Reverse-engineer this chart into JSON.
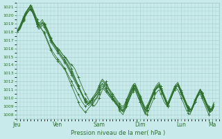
{
  "title": "",
  "xlabel": "Pression niveau de la mer( hPa )",
  "ylabel": "",
  "ylim": [
    1007.5,
    1021.5
  ],
  "yticks": [
    1008,
    1009,
    1010,
    1011,
    1012,
    1013,
    1014,
    1015,
    1016,
    1017,
    1018,
    1019,
    1020,
    1021
  ],
  "day_labels": [
    "Jeu",
    "Ven",
    "Sam",
    "Dim",
    "Lun",
    "Ma"
  ],
  "day_positions": [
    0,
    24,
    48,
    72,
    96,
    114
  ],
  "xlim": [
    0,
    118
  ],
  "bg_color": "#c8eaea",
  "grid_color": "#a0c8c8",
  "line_color": "#2d6e2d",
  "curves": [
    [
      1018.0,
      1018.2,
      1018.5,
      1019.0,
      1019.5,
      1020.0,
      1020.5,
      1020.8,
      1021.2,
      1021.0,
      1020.5,
      1020.0,
      1019.5,
      1019.0,
      1019.2,
      1019.5,
      1019.0,
      1018.5,
      1018.0,
      1017.5,
      1017.0,
      1016.8,
      1016.5,
      1016.2,
      1016.0,
      1015.8,
      1015.5,
      1015.2,
      1015.0,
      1014.8,
      1014.5,
      1014.2,
      1014.0,
      1013.8,
      1013.5,
      1013.0,
      1012.5,
      1012.0,
      1011.5,
      1011.0,
      1010.5,
      1010.2,
      1009.8,
      1009.5,
      1009.2,
      1009.0,
      1009.2,
      1009.5,
      1010.0,
      1010.5,
      1011.0,
      1011.5,
      1012.0,
      1011.5,
      1011.0,
      1010.5,
      1010.0,
      1009.8,
      1009.5,
      1009.0,
      1008.5,
      1008.2,
      1008.0,
      1008.5,
      1009.0,
      1009.5,
      1010.0,
      1010.5,
      1011.0,
      1011.2,
      1010.5,
      1010.0,
      1009.5,
      1009.0,
      1008.5,
      1008.2,
      1008.0,
      1008.5,
      1009.0,
      1009.5,
      1010.0,
      1010.5,
      1010.8,
      1011.0,
      1010.5,
      1010.0,
      1009.5,
      1009.2,
      1009.0,
      1009.5,
      1010.0,
      1010.5,
      1011.0,
      1011.2,
      1011.0,
      1010.5,
      1010.0,
      1009.5,
      1009.0,
      1008.5,
      1008.2,
      1008.0,
      1008.5,
      1009.0,
      1009.5,
      1010.0,
      1010.3,
      1010.5,
      1010.0,
      1009.5,
      1009.0,
      1008.5,
      1008.0,
      1008.5,
      1009.0,
      1009.5
    ],
    [
      1018.0,
      1018.3,
      1018.7,
      1019.2,
      1019.7,
      1020.2,
      1020.5,
      1020.8,
      1021.0,
      1020.7,
      1020.3,
      1019.8,
      1019.2,
      1018.8,
      1018.5,
      1018.2,
      1017.8,
      1017.3,
      1016.8,
      1016.3,
      1015.8,
      1015.3,
      1015.0,
      1014.7,
      1014.5,
      1014.2,
      1014.0,
      1013.7,
      1013.5,
      1013.0,
      1012.5,
      1012.0,
      1011.5,
      1011.0,
      1010.5,
      1010.0,
      1009.5,
      1009.0,
      1008.8,
      1008.5,
      1008.3,
      1008.5,
      1008.8,
      1009.0,
      1009.3,
      1009.5,
      1009.8,
      1010.0,
      1010.5,
      1011.0,
      1011.2,
      1011.0,
      1010.8,
      1010.5,
      1010.2,
      1010.0,
      1009.8,
      1009.5,
      1009.2,
      1009.0,
      1008.7,
      1008.5,
      1008.3,
      1008.5,
      1009.0,
      1009.5,
      1010.0,
      1010.5,
      1010.8,
      1011.0,
      1010.5,
      1010.0,
      1009.5,
      1009.0,
      1008.5,
      1008.0,
      1008.5,
      1009.0,
      1009.5,
      1010.0,
      1010.5,
      1011.0,
      1011.2,
      1011.3,
      1011.0,
      1010.5,
      1010.0,
      1009.5,
      1009.0,
      1009.5,
      1010.0,
      1010.5,
      1011.0,
      1011.3,
      1011.5,
      1011.0,
      1010.5,
      1010.0,
      1009.5,
      1009.0,
      1008.5,
      1008.3,
      1008.5,
      1009.0,
      1009.5,
      1010.0,
      1010.5,
      1010.8,
      1010.5,
      1010.0,
      1009.5,
      1009.0,
      1008.5,
      1008.3,
      1008.5,
      1009.0
    ],
    [
      1018.0,
      1018.1,
      1018.3,
      1018.8,
      1019.3,
      1019.8,
      1020.2,
      1020.5,
      1020.8,
      1020.5,
      1020.0,
      1019.5,
      1019.0,
      1018.8,
      1019.0,
      1019.2,
      1019.0,
      1018.7,
      1018.3,
      1017.8,
      1017.3,
      1016.8,
      1016.5,
      1016.2,
      1016.0,
      1015.8,
      1015.5,
      1015.2,
      1015.0,
      1014.7,
      1014.3,
      1014.0,
      1013.5,
      1013.0,
      1012.5,
      1012.0,
      1011.5,
      1011.0,
      1010.5,
      1010.0,
      1009.7,
      1009.5,
      1009.3,
      1009.5,
      1009.7,
      1010.0,
      1010.3,
      1010.5,
      1011.0,
      1011.5,
      1011.8,
      1011.5,
      1011.2,
      1010.8,
      1010.5,
      1010.2,
      1010.0,
      1009.7,
      1009.5,
      1009.2,
      1009.0,
      1008.8,
      1008.5,
      1009.0,
      1009.5,
      1010.0,
      1010.5,
      1011.0,
      1011.3,
      1011.5,
      1011.0,
      1010.5,
      1010.0,
      1009.5,
      1009.0,
      1008.5,
      1008.8,
      1009.2,
      1009.7,
      1010.2,
      1010.7,
      1011.0,
      1011.3,
      1011.5,
      1011.0,
      1010.5,
      1010.0,
      1009.5,
      1009.0,
      1009.5,
      1010.0,
      1010.5,
      1011.0,
      1011.5,
      1011.7,
      1011.3,
      1010.8,
      1010.3,
      1009.8,
      1009.3,
      1009.0,
      1008.7,
      1008.5,
      1009.0,
      1009.5,
      1010.0,
      1010.5,
      1011.0,
      1010.7,
      1010.3,
      1009.8,
      1009.3,
      1009.0,
      1008.7,
      1008.5,
      1009.0
    ],
    [
      1018.0,
      1018.2,
      1018.5,
      1019.0,
      1019.5,
      1020.0,
      1020.3,
      1020.5,
      1020.7,
      1020.4,
      1020.0,
      1019.5,
      1019.0,
      1018.7,
      1018.9,
      1019.1,
      1018.9,
      1018.6,
      1018.2,
      1017.7,
      1017.2,
      1016.7,
      1016.4,
      1016.1,
      1015.8,
      1015.5,
      1015.2,
      1014.9,
      1014.6,
      1014.3,
      1014.0,
      1013.6,
      1013.2,
      1012.8,
      1012.4,
      1012.0,
      1011.5,
      1011.0,
      1010.5,
      1010.0,
      1009.5,
      1009.3,
      1009.1,
      1009.3,
      1009.5,
      1009.7,
      1009.9,
      1010.2,
      1010.7,
      1011.2,
      1011.5,
      1011.2,
      1011.0,
      1010.7,
      1010.4,
      1010.1,
      1009.8,
      1009.6,
      1009.3,
      1009.1,
      1008.8,
      1008.6,
      1008.4,
      1008.7,
      1009.2,
      1009.7,
      1010.2,
      1010.8,
      1011.1,
      1011.3,
      1010.8,
      1010.3,
      1009.8,
      1009.3,
      1008.8,
      1008.3,
      1008.6,
      1009.1,
      1009.6,
      1010.1,
      1010.6,
      1011.0,
      1011.3,
      1011.4,
      1011.0,
      1010.5,
      1010.0,
      1009.5,
      1009.0,
      1009.5,
      1010.0,
      1010.5,
      1011.0,
      1011.3,
      1011.5,
      1011.0,
      1010.5,
      1010.0,
      1009.5,
      1009.0,
      1008.6,
      1008.3,
      1008.5,
      1009.0,
      1009.5,
      1010.0,
      1010.4,
      1010.7,
      1010.3,
      1009.8,
      1009.3,
      1008.8,
      1008.5,
      1008.3,
      1008.5,
      1009.0
    ],
    [
      1018.2,
      1018.4,
      1018.8,
      1019.3,
      1019.8,
      1020.3,
      1020.6,
      1020.9,
      1021.2,
      1020.9,
      1020.4,
      1019.8,
      1019.2,
      1018.8,
      1018.5,
      1018.2,
      1018.0,
      1017.5,
      1017.0,
      1016.5,
      1016.0,
      1015.6,
      1015.3,
      1015.0,
      1014.7,
      1014.5,
      1014.2,
      1013.9,
      1013.6,
      1013.2,
      1012.8,
      1012.4,
      1012.0,
      1011.6,
      1011.2,
      1010.8,
      1010.4,
      1010.0,
      1009.6,
      1009.3,
      1009.0,
      1009.2,
      1009.4,
      1009.6,
      1009.8,
      1010.0,
      1010.2,
      1010.5,
      1011.0,
      1011.5,
      1011.7,
      1011.5,
      1011.2,
      1010.9,
      1010.6,
      1010.3,
      1010.0,
      1009.7,
      1009.4,
      1009.1,
      1008.8,
      1008.6,
      1008.5,
      1008.8,
      1009.3,
      1009.8,
      1010.3,
      1010.8,
      1011.2,
      1011.5,
      1011.0,
      1010.5,
      1010.0,
      1009.5,
      1009.0,
      1008.5,
      1008.8,
      1009.2,
      1009.7,
      1010.2,
      1010.7,
      1011.1,
      1011.4,
      1011.6,
      1011.2,
      1010.7,
      1010.2,
      1009.7,
      1009.2,
      1009.7,
      1010.2,
      1010.7,
      1011.2,
      1011.5,
      1011.7,
      1011.2,
      1010.7,
      1010.2,
      1009.7,
      1009.2,
      1008.8,
      1008.5,
      1008.7,
      1009.2,
      1009.7,
      1010.2,
      1010.6,
      1011.0,
      1010.6,
      1010.1,
      1009.6,
      1009.1,
      1008.7,
      1008.5,
      1008.7,
      1009.2
    ],
    [
      1018.0,
      1018.2,
      1018.6,
      1019.1,
      1019.6,
      1020.1,
      1020.4,
      1020.7,
      1021.0,
      1020.7,
      1020.2,
      1019.6,
      1018.9,
      1018.5,
      1018.7,
      1019.0,
      1018.8,
      1018.4,
      1018.0,
      1017.5,
      1017.0,
      1016.6,
      1016.3,
      1016.0,
      1015.7,
      1015.4,
      1015.1,
      1014.8,
      1014.5,
      1014.2,
      1013.8,
      1013.4,
      1013.0,
      1012.6,
      1012.2,
      1011.8,
      1011.4,
      1011.0,
      1010.6,
      1010.2,
      1009.9,
      1009.7,
      1009.5,
      1009.7,
      1010.0,
      1010.3,
      1010.6,
      1011.0,
      1011.5,
      1012.0,
      1012.3,
      1012.0,
      1011.7,
      1011.4,
      1011.1,
      1010.8,
      1010.5,
      1010.2,
      1009.9,
      1009.6,
      1009.3,
      1009.1,
      1009.0,
      1009.3,
      1009.8,
      1010.3,
      1010.8,
      1011.3,
      1011.6,
      1011.8,
      1011.3,
      1010.8,
      1010.3,
      1009.8,
      1009.3,
      1008.8,
      1009.1,
      1009.5,
      1010.0,
      1010.5,
      1011.0,
      1011.4,
      1011.7,
      1011.9,
      1011.4,
      1010.9,
      1010.4,
      1009.9,
      1009.4,
      1009.9,
      1010.4,
      1010.9,
      1011.4,
      1011.7,
      1011.9,
      1011.4,
      1010.9,
      1010.4,
      1009.9,
      1009.4,
      1008.9,
      1008.6,
      1008.8,
      1009.3,
      1009.8,
      1010.3,
      1010.7,
      1011.1,
      1010.7,
      1010.2,
      1009.7,
      1009.2,
      1008.8,
      1008.6,
      1008.8,
      1009.3
    ],
    [
      1018.0,
      1018.1,
      1018.4,
      1018.9,
      1019.4,
      1019.9,
      1020.2,
      1020.5,
      1020.8,
      1020.5,
      1020.0,
      1019.4,
      1018.7,
      1018.3,
      1018.5,
      1018.8,
      1018.6,
      1018.2,
      1017.8,
      1017.3,
      1016.8,
      1016.4,
      1016.1,
      1015.8,
      1015.5,
      1015.2,
      1014.9,
      1014.6,
      1014.3,
      1014.0,
      1013.6,
      1013.2,
      1012.8,
      1012.4,
      1012.0,
      1011.6,
      1011.2,
      1010.8,
      1010.4,
      1010.0,
      1009.7,
      1009.5,
      1009.3,
      1009.5,
      1009.8,
      1010.1,
      1010.4,
      1010.8,
      1011.3,
      1011.8,
      1012.1,
      1011.8,
      1011.5,
      1011.2,
      1010.9,
      1010.6,
      1010.3,
      1010.0,
      1009.7,
      1009.4,
      1009.1,
      1008.9,
      1008.8,
      1009.1,
      1009.6,
      1010.1,
      1010.6,
      1011.1,
      1011.4,
      1011.6,
      1011.1,
      1010.6,
      1010.1,
      1009.6,
      1009.1,
      1008.6,
      1008.9,
      1009.3,
      1009.8,
      1010.3,
      1010.8,
      1011.2,
      1011.5,
      1011.7,
      1011.2,
      1010.7,
      1010.2,
      1009.7,
      1009.2,
      1009.7,
      1010.2,
      1010.7,
      1011.2,
      1011.5,
      1011.7,
      1011.2,
      1010.7,
      1010.2,
      1009.7,
      1009.2,
      1008.8,
      1008.5,
      1008.7,
      1009.2,
      1009.7,
      1010.2,
      1010.6,
      1011.0,
      1010.6,
      1010.1,
      1009.6,
      1009.1,
      1008.7,
      1008.5,
      1008.7,
      1009.2
    ]
  ]
}
